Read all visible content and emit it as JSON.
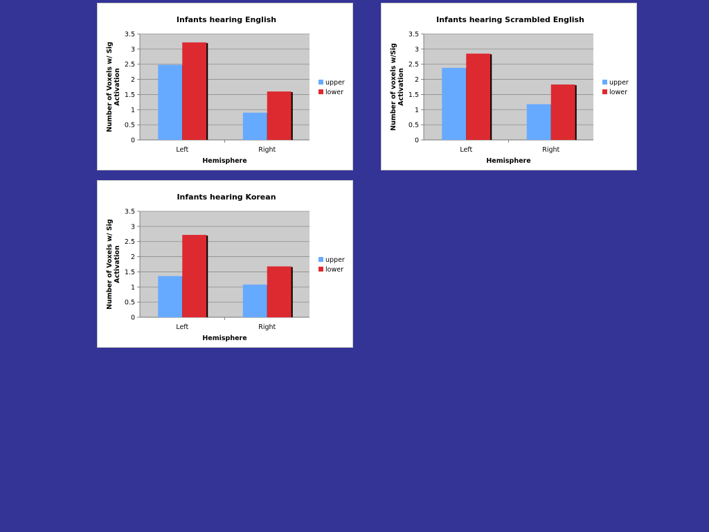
{
  "background_color": "#343396",
  "chart_data": [
    {
      "type": "bar",
      "title": "Infants hearing English",
      "xlabel": "Hemisphere",
      "ylabel_lines": [
        "Number of Voxels w/ Sig",
        "Activation"
      ],
      "categories": [
        "Left",
        "Right"
      ],
      "ylim": [
        0,
        3.5
      ],
      "yticks": [
        "0",
        "0.5",
        "1",
        "1.5",
        "2",
        "2.5",
        "3",
        "3.5"
      ],
      "grid": true,
      "legend_position": "right",
      "series": [
        {
          "name": "upper",
          "color": "#66aaff",
          "values": [
            2.48,
            0.9
          ]
        },
        {
          "name": "lower",
          "color": "#dd2a30",
          "values": [
            3.22,
            1.6
          ]
        }
      ]
    },
    {
      "type": "bar",
      "title": "Infants hearing Scrambled English",
      "xlabel": "Hemisphere",
      "ylabel_lines": [
        "Number of voxels w/Sig",
        "Activation"
      ],
      "categories": [
        "Left",
        "Right"
      ],
      "ylim": [
        0,
        3.5
      ],
      "yticks": [
        "0",
        "0.5",
        "1",
        "1.5",
        "2",
        "2.5",
        "3",
        "3.5"
      ],
      "grid": true,
      "legend_position": "right",
      "series": [
        {
          "name": "upper",
          "color": "#66aaff",
          "values": [
            2.38,
            1.18
          ]
        },
        {
          "name": "lower",
          "color": "#dd2a30",
          "values": [
            2.85,
            1.83
          ]
        }
      ]
    },
    {
      "type": "bar",
      "title": "Infants hearing Korean",
      "xlabel": "Hemisphere",
      "ylabel_lines": [
        "Number of Voxels w/ Sig",
        "Activation"
      ],
      "categories": [
        "Left",
        "Right"
      ],
      "ylim": [
        0,
        3.5
      ],
      "yticks": [
        "0",
        "0.5",
        "1",
        "1.5",
        "2",
        "2.5",
        "3",
        "3.5"
      ],
      "grid": true,
      "legend_position": "right",
      "series": [
        {
          "name": "upper",
          "color": "#66aaff",
          "values": [
            1.36,
            1.08
          ]
        },
        {
          "name": "lower",
          "color": "#dd2a30",
          "values": [
            2.72,
            1.68
          ]
        }
      ]
    }
  ]
}
